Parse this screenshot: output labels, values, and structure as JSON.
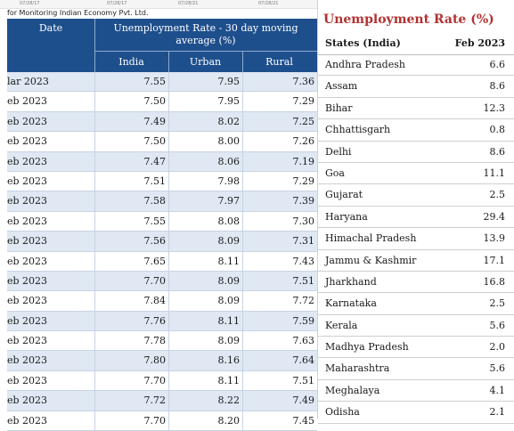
{
  "left_table": {
    "top_strip": [
      "07/28/17",
      "07/28/17",
      "07/28/21",
      "07/28/21"
    ],
    "source": "for Monitoring Indian Economy Pvt. Ltd.",
    "header": {
      "date": "Date",
      "group_line1": "Unemployment Rate - 30 day moving",
      "group_line2": "average (%)",
      "india": "India",
      "urban": "Urban",
      "rural": "Rural"
    },
    "rows": [
      {
        "date": "lar 2023",
        "india": "7.55",
        "urban": "7.95",
        "rural": "7.36"
      },
      {
        "date": "eb 2023",
        "india": "7.50",
        "urban": "7.95",
        "rural": "7.29"
      },
      {
        "date": "eb 2023",
        "india": "7.49",
        "urban": "8.02",
        "rural": "7.25"
      },
      {
        "date": "eb 2023",
        "india": "7.50",
        "urban": "8.00",
        "rural": "7.26"
      },
      {
        "date": "eb 2023",
        "india": "7.47",
        "urban": "8.06",
        "rural": "7.19"
      },
      {
        "date": "eb 2023",
        "india": "7.51",
        "urban": "7.98",
        "rural": "7.29"
      },
      {
        "date": "eb 2023",
        "india": "7.58",
        "urban": "7.97",
        "rural": "7.39"
      },
      {
        "date": "eb 2023",
        "india": "7.55",
        "urban": "8.08",
        "rural": "7.30"
      },
      {
        "date": "eb 2023",
        "india": "7.56",
        "urban": "8.09",
        "rural": "7.31"
      },
      {
        "date": "eb 2023",
        "india": "7.65",
        "urban": "8.11",
        "rural": "7.43"
      },
      {
        "date": "eb 2023",
        "india": "7.70",
        "urban": "8.09",
        "rural": "7.51"
      },
      {
        "date": "eb 2023",
        "india": "7.84",
        "urban": "8.09",
        "rural": "7.72"
      },
      {
        "date": "eb 2023",
        "india": "7.76",
        "urban": "8.11",
        "rural": "7.59"
      },
      {
        "date": "eb 2023",
        "india": "7.78",
        "urban": "8.09",
        "rural": "7.63"
      },
      {
        "date": "eb 2023",
        "india": "7.80",
        "urban": "8.16",
        "rural": "7.64"
      },
      {
        "date": "eb 2023",
        "india": "7.70",
        "urban": "8.11",
        "rural": "7.51"
      },
      {
        "date": "eb 2023",
        "india": "7.72",
        "urban": "8.22",
        "rural": "7.49"
      },
      {
        "date": "eb 2023",
        "india": "7.70",
        "urban": "8.20",
        "rural": "7.45"
      }
    ]
  },
  "right_table": {
    "title": "Unemployment Rate (%)",
    "header": {
      "state": "States (India)",
      "value": "Feb 2023"
    },
    "rows": [
      {
        "state": "Andhra Pradesh",
        "value": "6.6"
      },
      {
        "state": "Assam",
        "value": "8.6"
      },
      {
        "state": "Bihar",
        "value": "12.3"
      },
      {
        "state": "Chhattisgarh",
        "value": "0.8"
      },
      {
        "state": "Delhi",
        "value": "8.6"
      },
      {
        "state": "Goa",
        "value": "11.1"
      },
      {
        "state": "Gujarat",
        "value": "2.5"
      },
      {
        "state": "Haryana",
        "value": "29.4"
      },
      {
        "state": "Himachal Pradesh",
        "value": "13.9"
      },
      {
        "state": "Jammu & Kashmir",
        "value": "17.1"
      },
      {
        "state": "Jharkhand",
        "value": "16.8"
      },
      {
        "state": "Karnataka",
        "value": "2.5"
      },
      {
        "state": "Kerala",
        "value": "5.6"
      },
      {
        "state": "Madhya Pradesh",
        "value": "2.0"
      },
      {
        "state": "Maharashtra",
        "value": "5.6"
      },
      {
        "state": "Meghalaya",
        "value": "4.1"
      },
      {
        "state": "Odisha",
        "value": "2.1"
      }
    ]
  }
}
